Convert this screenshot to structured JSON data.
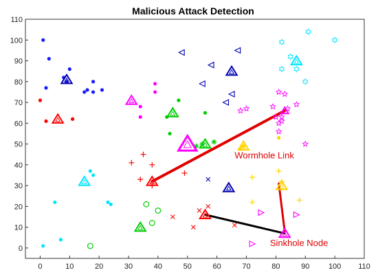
{
  "chart_data": {
    "type": "scatter",
    "title": "Malicious Attack Detection",
    "xlabel": "",
    "ylabel": "",
    "xlim": [
      -5,
      110
    ],
    "ylim": [
      -5,
      110
    ],
    "xticks": [
      0,
      10,
      20,
      30,
      40,
      50,
      60,
      70,
      80,
      90,
      100,
      110
    ],
    "yticks": [
      0,
      10,
      20,
      30,
      40,
      50,
      60,
      70,
      80,
      90,
      100,
      110
    ],
    "grid": false,
    "colors": {
      "blue": "#1a1aff",
      "navy": "#0000b0",
      "red": "#ff0000",
      "darkred": "#cc0000",
      "magenta": "#ff00ff",
      "green": "#00cc00",
      "cyan": "#00e5ff",
      "yellow": "#ffd400",
      "black": "#000000",
      "link": "#e00000"
    },
    "groups": [
      {
        "color": "blue",
        "marker": "dot",
        "points": [
          [
            1,
            100
          ],
          [
            3,
            91
          ],
          [
            2,
            77
          ],
          [
            10,
            86
          ],
          [
            9,
            80
          ],
          [
            8,
            82
          ],
          [
            15,
            75
          ],
          [
            16,
            76
          ],
          [
            18,
            80
          ],
          [
            18,
            75
          ],
          [
            21,
            76
          ]
        ]
      },
      {
        "color": "red",
        "marker": "dot",
        "points": [
          [
            0,
            71
          ],
          [
            2,
            61
          ],
          [
            11,
            62
          ]
        ]
      },
      {
        "color": "magenta",
        "marker": "dot",
        "points": [
          [
            39,
            79
          ],
          [
            39,
            75
          ],
          [
            34,
            68
          ],
          [
            34,
            63
          ]
        ]
      },
      {
        "color": "green",
        "marker": "dot",
        "points": [
          [
            43,
            63
          ],
          [
            47,
            71
          ],
          [
            44,
            55
          ],
          [
            56,
            65
          ]
        ]
      },
      {
        "color": "cyan",
        "marker": "dot",
        "points": [
          [
            17,
            37
          ],
          [
            18,
            35
          ],
          [
            5,
            22
          ],
          [
            23,
            22
          ],
          [
            24,
            21
          ],
          [
            7,
            4
          ],
          [
            1,
            1
          ]
        ]
      },
      {
        "color": "yellow",
        "marker": "dot",
        "points": [
          [
            81,
            53
          ],
          [
            68,
            48
          ],
          [
            69,
            49
          ]
        ]
      },
      {
        "color": "navy",
        "marker": "tri-left",
        "points": [
          [
            48,
            94
          ],
          [
            58,
            88
          ],
          [
            55,
            79
          ],
          [
            67,
            95
          ],
          [
            65,
            74
          ],
          [
            63,
            70
          ]
        ]
      },
      {
        "color": "magenta",
        "marker": "star",
        "points": [
          [
            68,
            66
          ],
          [
            70,
            67
          ],
          [
            79,
            68
          ],
          [
            81,
            75
          ],
          [
            83,
            74
          ],
          [
            82,
            63
          ],
          [
            84,
            67
          ],
          [
            81,
            56
          ],
          [
            82,
            61
          ],
          [
            87,
            69
          ],
          [
            90,
            50
          ],
          [
            81,
            60
          ],
          [
            80,
            63
          ]
        ]
      },
      {
        "color": "cyan",
        "marker": "hexagram",
        "points": [
          [
            82,
            99
          ],
          [
            91,
            104
          ],
          [
            100,
            100
          ],
          [
            82,
            86
          ],
          [
            85,
            92
          ],
          [
            87,
            86
          ],
          [
            90,
            80
          ]
        ]
      },
      {
        "color": "red",
        "marker": "plus",
        "points": [
          [
            31,
            41
          ],
          [
            35,
            45
          ],
          [
            38,
            40
          ],
          [
            38,
            30
          ],
          [
            34,
            33
          ],
          [
            49,
            36
          ]
        ]
      },
      {
        "color": "green",
        "marker": "asterisk",
        "points": [
          [
            59,
            51
          ],
          [
            55,
            50
          ],
          [
            53,
            49
          ]
        ]
      },
      {
        "color": "yellow",
        "marker": "plus",
        "points": [
          [
            72,
            34
          ],
          [
            81,
            37
          ],
          [
            82,
            32
          ],
          [
            72,
            22
          ],
          [
            88,
            23
          ]
        ]
      },
      {
        "color": "green",
        "marker": "circle",
        "points": [
          [
            36,
            21
          ],
          [
            40,
            18
          ],
          [
            38,
            12
          ],
          [
            17,
            1
          ]
        ]
      },
      {
        "color": "red",
        "marker": "x",
        "points": [
          [
            45,
            15
          ],
          [
            54,
            18
          ],
          [
            57,
            20
          ],
          [
            52,
            10
          ],
          [
            66,
            11
          ]
        ]
      },
      {
        "color": "navy",
        "marker": "x",
        "points": [
          [
            57,
            33
          ]
        ]
      },
      {
        "color": "magenta",
        "marker": "tri-right",
        "points": [
          [
            75,
            17
          ],
          [
            87,
            16
          ],
          [
            72,
            2
          ]
        ]
      }
    ],
    "cluster_heads": [
      {
        "color": "navy",
        "x": 9,
        "y": 81,
        "size": "medium"
      },
      {
        "color": "red",
        "x": 6,
        "y": 62,
        "size": "medium"
      },
      {
        "color": "magenta",
        "x": 31,
        "y": 71,
        "size": "medium"
      },
      {
        "color": "green",
        "x": 45,
        "y": 65,
        "size": "medium"
      },
      {
        "color": "navy",
        "x": 65,
        "y": 85,
        "size": "medium"
      },
      {
        "color": "cyan",
        "x": 87,
        "y": 90,
        "size": "medium"
      },
      {
        "color": "magenta",
        "x": 50,
        "y": 50,
        "size": "large"
      },
      {
        "color": "green",
        "x": 56,
        "y": 50,
        "size": "medium"
      },
      {
        "color": "yellow",
        "x": 69,
        "y": 49,
        "size": "medium"
      },
      {
        "color": "cyan",
        "x": 15,
        "y": 32,
        "size": "medium"
      },
      {
        "color": "red",
        "x": 38,
        "y": 32,
        "size": "medium"
      },
      {
        "color": "navy",
        "x": 64,
        "y": 29,
        "size": "medium"
      },
      {
        "color": "yellow",
        "x": 82,
        "y": 30,
        "size": "medium"
      },
      {
        "color": "green",
        "x": 34,
        "y": 10,
        "size": "medium"
      },
      {
        "color": "red",
        "x": 56,
        "y": 16,
        "size": "medium"
      },
      {
        "color": "magenta",
        "x": 83,
        "y": 7,
        "size": "medium"
      },
      {
        "color": "magenta",
        "x": 83,
        "y": 66,
        "size": "small"
      }
    ],
    "links": [
      {
        "color": "link",
        "x1": 38,
        "y1": 32,
        "x2": 83,
        "y2": 66,
        "width": 4
      },
      {
        "color": "link",
        "x1": 81,
        "y1": 31,
        "x2": 83,
        "y2": 8,
        "width": 3
      },
      {
        "color": "black",
        "x1": 56,
        "y1": 16,
        "x2": 83,
        "y2": 7,
        "width": 3
      }
    ],
    "annotations": [
      {
        "text": "Wormhole Link",
        "x": 66,
        "y": 43,
        "color": "link"
      },
      {
        "text": "Sinkhole Node",
        "x": 78,
        "y": 1,
        "color": "link"
      }
    ]
  }
}
